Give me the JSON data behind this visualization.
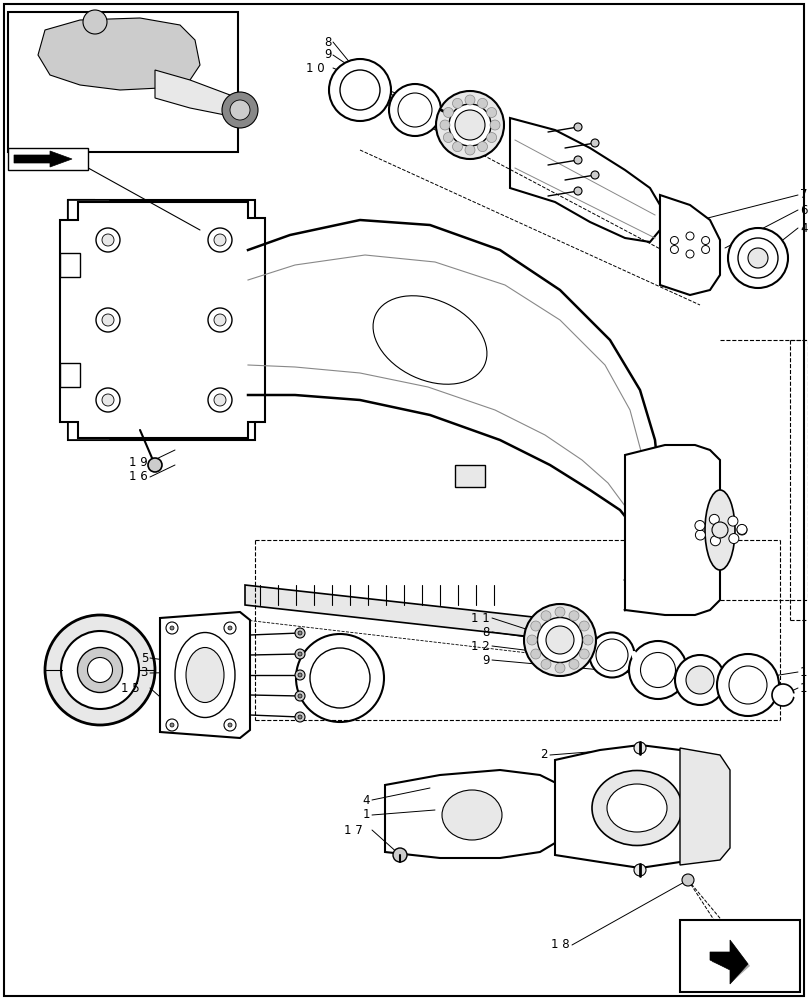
{
  "bg_color": "#ffffff",
  "line_color": "#000000",
  "fig_width": 8.08,
  "fig_height": 10.0,
  "dpi": 100,
  "gray_light": "#e8e8e8",
  "gray_med": "#cccccc",
  "gray_dark": "#888888"
}
